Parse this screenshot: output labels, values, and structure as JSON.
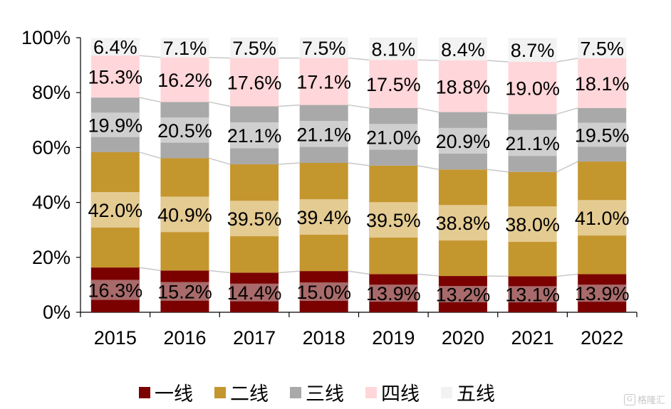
{
  "chart_data": {
    "type": "bar",
    "stacked": true,
    "categories": [
      "2015",
      "2016",
      "2017",
      "2018",
      "2019",
      "2020",
      "2021",
      "2022"
    ],
    "series": [
      {
        "name": "一线",
        "color": "#7b0000",
        "values": [
          16.3,
          15.2,
          14.4,
          15.0,
          13.9,
          13.2,
          13.1,
          13.9
        ],
        "labels": [
          "16.3%",
          "15.2%",
          "14.4%",
          "15.0%",
          "13.9%",
          "13.2%",
          "13.1%",
          "13.9%"
        ]
      },
      {
        "name": "二线",
        "color": "#c4962e",
        "values": [
          42.0,
          40.9,
          39.5,
          39.4,
          39.5,
          38.8,
          38.0,
          41.0
        ],
        "labels": [
          "42.0%",
          "40.9%",
          "39.5%",
          "39.4%",
          "39.5%",
          "38.8%",
          "38.0%",
          "41.0%"
        ]
      },
      {
        "name": "三线",
        "color": "#a9a9a9",
        "values": [
          19.9,
          20.5,
          21.1,
          21.1,
          21.0,
          20.9,
          21.1,
          19.5
        ],
        "labels": [
          "19.9%",
          "20.5%",
          "21.1%",
          "21.1%",
          "21.0%",
          "20.9%",
          "21.1%",
          "19.5%"
        ]
      },
      {
        "name": "四线",
        "color": "#ffd6d9",
        "values": [
          15.3,
          16.2,
          17.6,
          17.1,
          17.5,
          18.8,
          19.0,
          18.1
        ],
        "labels": [
          "15.3%",
          "16.2%",
          "17.6%",
          "17.1%",
          "17.5%",
          "18.8%",
          "19.0%",
          "18.1%"
        ]
      },
      {
        "name": "五线",
        "color": "#f2f2f2",
        "values": [
          6.4,
          7.1,
          7.5,
          7.5,
          8.1,
          8.4,
          8.7,
          7.5
        ],
        "labels": [
          "6.4%",
          "7.1%",
          "7.5%",
          "7.5%",
          "8.1%",
          "8.4%",
          "8.7%",
          "7.5%"
        ]
      }
    ],
    "yticks": [
      "0%",
      "20%",
      "40%",
      "60%",
      "80%",
      "100%"
    ],
    "ylim": [
      0,
      100
    ],
    "grid": false,
    "connector_lines": true,
    "legend_position": "bottom",
    "first_series_light_color": "#a86a6a",
    "second_series_light_color": "#e4cb92",
    "third_series_light_color": "#cfcfcf"
  },
  "watermark": {
    "text": "格隆汇",
    "icon": "logo-icon"
  }
}
